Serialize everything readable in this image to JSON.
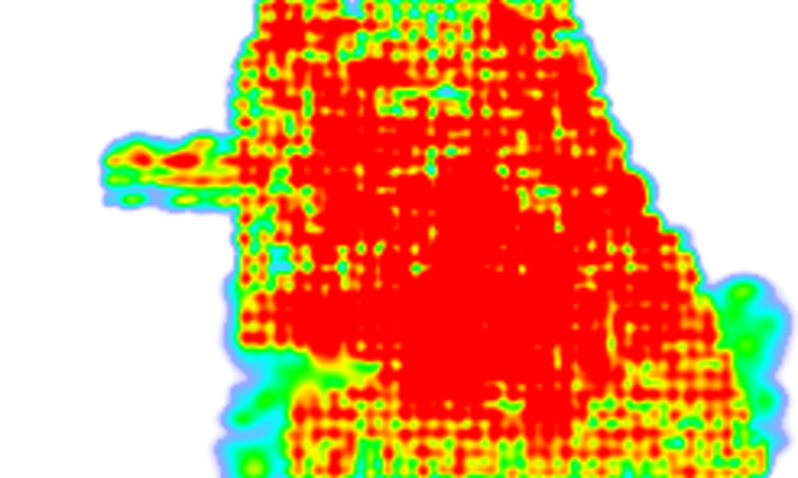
{
  "map": {
    "type": "density-heatmap",
    "background_color": "#ffffff",
    "color_ramp": [
      "#8080ff",
      "#00ffff",
      "#00ff00",
      "#ffff00",
      "#ff8000",
      "#ff0000"
    ],
    "labels_visible": false
  }
}
